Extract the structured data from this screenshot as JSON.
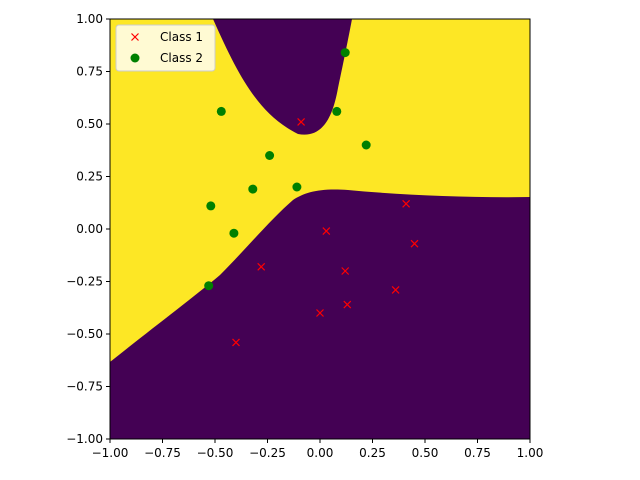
{
  "chart_data": {
    "type": "scatter",
    "title": "",
    "xlabel": "",
    "ylabel": "",
    "xlim": [
      -1.0,
      1.0
    ],
    "ylim": [
      -1.0,
      1.0
    ],
    "xticks": [
      "−1.00",
      "−0.75",
      "−0.50",
      "−0.25",
      "0.00",
      "0.25",
      "0.50",
      "0.75",
      "1.00"
    ],
    "yticks": [
      "−1.00",
      "−0.75",
      "−0.50",
      "−0.25",
      "0.00",
      "0.25",
      "0.50",
      "0.75",
      "1.00"
    ],
    "xtick_values": [
      -1.0,
      -0.75,
      -0.5,
      -0.25,
      0.0,
      0.25,
      0.5,
      0.75,
      1.0
    ],
    "ytick_values": [
      -1.0,
      -0.75,
      -0.5,
      -0.25,
      0.0,
      0.25,
      0.5,
      0.75,
      1.0
    ],
    "grid": false,
    "legend_position": "top-left",
    "background": {
      "description": "decision region: yellow band separating purple regions",
      "color_class1_region": "#440154",
      "color_class2_region": "#fde725"
    },
    "series": [
      {
        "name": "Class 1",
        "marker": "x",
        "color": "#ff0000",
        "points": [
          {
            "x": -0.09,
            "y": 0.51
          },
          {
            "x": 0.41,
            "y": 0.12
          },
          {
            "x": 0.03,
            "y": -0.01
          },
          {
            "x": 0.45,
            "y": -0.07
          },
          {
            "x": -0.28,
            "y": -0.18
          },
          {
            "x": 0.12,
            "y": -0.2
          },
          {
            "x": 0.36,
            "y": -0.29
          },
          {
            "x": 0.13,
            "y": -0.36
          },
          {
            "x": 0.0,
            "y": -0.4
          },
          {
            "x": -0.4,
            "y": -0.54
          }
        ]
      },
      {
        "name": "Class 2",
        "marker": "o",
        "color": "#008000",
        "points": [
          {
            "x": 0.12,
            "y": 0.84
          },
          {
            "x": -0.47,
            "y": 0.56
          },
          {
            "x": 0.08,
            "y": 0.56
          },
          {
            "x": 0.22,
            "y": 0.4
          },
          {
            "x": -0.24,
            "y": 0.35
          },
          {
            "x": -0.32,
            "y": 0.19
          },
          {
            "x": -0.11,
            "y": 0.2
          },
          {
            "x": -0.52,
            "y": 0.11
          },
          {
            "x": -0.41,
            "y": -0.02
          },
          {
            "x": -0.53,
            "y": -0.27
          }
        ]
      }
    ]
  }
}
